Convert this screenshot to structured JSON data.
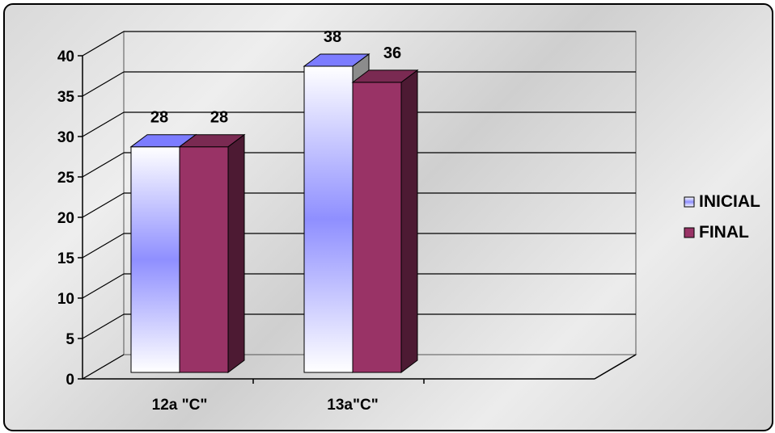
{
  "chart_data": {
    "type": "bar",
    "categories": [
      "12a  \"C\"",
      "13a\"C\""
    ],
    "series": [
      {
        "name": "INICIAL",
        "values": [
          28,
          38
        ]
      },
      {
        "name": "FINAL",
        "values": [
          28,
          36
        ]
      }
    ],
    "ylim": [
      0,
      40
    ],
    "yticks": [
      0,
      5,
      10,
      15,
      20,
      25,
      30,
      35,
      40
    ],
    "title": "",
    "xlabel": "",
    "ylabel": "",
    "grid": true,
    "legend": "right",
    "colors": {
      "inicial_light": "#ffffff",
      "inicial_mid": "#8f8fff",
      "inicial_top": "#7c7cff",
      "inicial_side": "#8c8c8c",
      "final_front": "#993366",
      "final_side": "#4d1a33",
      "final_top": "#7a2a52"
    }
  }
}
